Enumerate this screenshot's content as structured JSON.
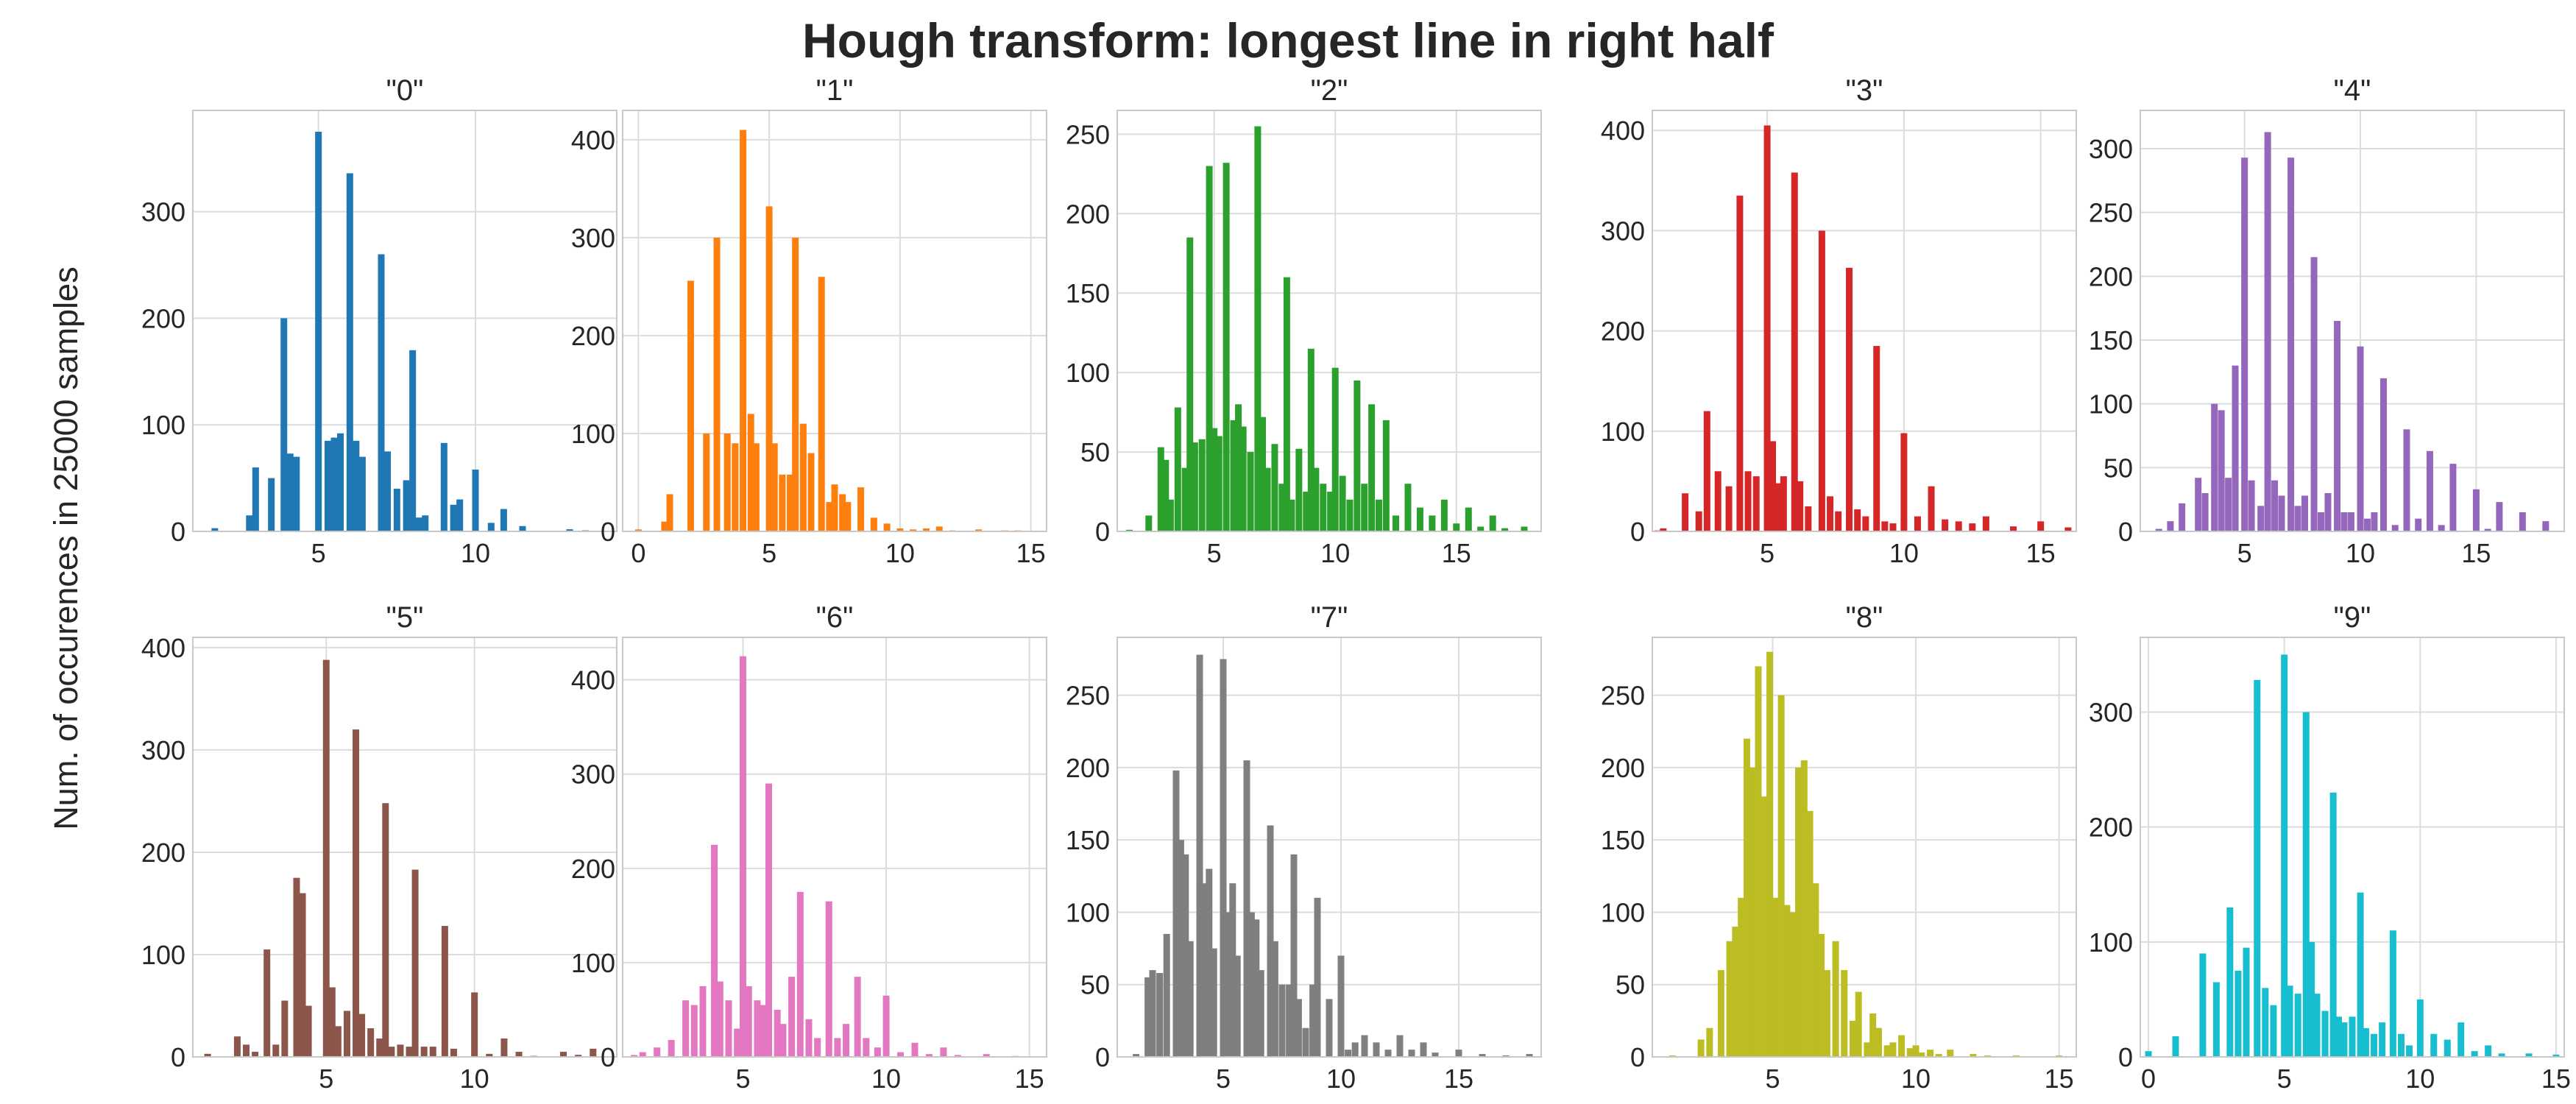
{
  "title": "Hough transform: longest line in right half",
  "ylabel": "Num. of occurences in 25000 samples",
  "chart_data": {
    "type": "bar",
    "layout": "2x5 grid of histograms",
    "grid": true,
    "panels": [
      {
        "title": "\"0\"",
        "color": "#1f77b4",
        "xlim": [
          1,
          14.5
        ],
        "ylim": [
          0,
          395
        ],
        "xticks": [
          5,
          10
        ],
        "yticks": [
          0,
          100,
          200,
          300
        ],
        "x": [
          1.7,
          2.8,
          3.0,
          3.5,
          3.9,
          4.1,
          4.3,
          5.0,
          5.3,
          5.5,
          5.7,
          6.0,
          6.2,
          6.4,
          7.0,
          7.2,
          7.5,
          7.8,
          8.0,
          8.2,
          8.4,
          9.0,
          9.3,
          9.5,
          10.0,
          10.5,
          10.9,
          11.5,
          13.0,
          13.5
        ],
        "values": [
          3,
          15,
          60,
          50,
          200,
          73,
          70,
          375,
          85,
          88,
          92,
          336,
          85,
          70,
          260,
          75,
          40,
          48,
          170,
          13,
          15,
          83,
          25,
          30,
          58,
          8,
          21,
          5,
          2,
          1
        ]
      },
      {
        "title": "\"1\"",
        "color": "#ff7f0e",
        "xlim": [
          -0.6,
          15.6
        ],
        "ylim": [
          0,
          430
        ],
        "xticks": [
          0,
          5,
          10,
          15
        ],
        "yticks": [
          0,
          100,
          200,
          300,
          400
        ],
        "x": [
          0.0,
          1.0,
          1.2,
          2.0,
          2.6,
          3.0,
          3.4,
          3.7,
          4.0,
          4.3,
          4.5,
          5.0,
          5.2,
          5.5,
          5.8,
          6.0,
          6.3,
          6.6,
          7.0,
          7.3,
          7.5,
          7.8,
          8.0,
          8.5,
          9.0,
          9.5,
          10.0,
          10.5,
          11.0,
          11.5,
          12.0,
          13.0,
          14.0,
          14.5
        ],
        "values": [
          2,
          10,
          38,
          256,
          100,
          300,
          100,
          90,
          410,
          120,
          90,
          332,
          90,
          58,
          58,
          300,
          110,
          80,
          260,
          30,
          48,
          38,
          30,
          45,
          14,
          8,
          3,
          2,
          3,
          5,
          1,
          2,
          1,
          1
        ]
      },
      {
        "title": "\"2\"",
        "color": "#2ca02c",
        "xlim": [
          1,
          18.5
        ],
        "ylim": [
          0,
          265
        ],
        "xticks": [
          5,
          10,
          15
        ],
        "yticks": [
          0,
          50,
          100,
          150,
          200,
          250
        ],
        "x": [
          1.5,
          2.3,
          2.8,
          3.0,
          3.2,
          3.5,
          3.8,
          4.0,
          4.2,
          4.5,
          4.8,
          5.0,
          5.2,
          5.5,
          5.8,
          6.0,
          6.2,
          6.5,
          6.8,
          7.0,
          7.2,
          7.5,
          7.8,
          8.0,
          8.2,
          8.5,
          8.8,
          9.0,
          9.2,
          9.5,
          9.8,
          10.0,
          10.3,
          10.6,
          10.9,
          11.2,
          11.5,
          11.8,
          12.1,
          12.5,
          13.0,
          13.5,
          14.0,
          14.5,
          15.0,
          15.5,
          16.0,
          16.5,
          17.0,
          17.8
        ],
        "values": [
          1,
          10,
          53,
          45,
          20,
          78,
          40,
          185,
          56,
          58,
          230,
          65,
          60,
          232,
          70,
          80,
          66,
          50,
          255,
          72,
          40,
          55,
          30,
          160,
          20,
          52,
          25,
          115,
          40,
          30,
          25,
          103,
          35,
          20,
          95,
          30,
          80,
          20,
          70,
          10,
          30,
          15,
          10,
          20,
          5,
          15,
          3,
          10,
          2,
          3
        ]
      },
      {
        "title": "\"3\"",
        "color": "#d62728",
        "xlim": [
          0.8,
          16.3
        ],
        "ylim": [
          0,
          420
        ],
        "xticks": [
          5,
          10,
          15
        ],
        "yticks": [
          0,
          100,
          200,
          300,
          400
        ],
        "x": [
          1.0,
          1.2,
          2.0,
          2.5,
          2.8,
          3.2,
          3.6,
          4.0,
          4.3,
          4.6,
          5.0,
          5.2,
          5.4,
          5.6,
          6.0,
          6.2,
          6.5,
          7.0,
          7.3,
          7.6,
          8.0,
          8.3,
          8.6,
          9.0,
          9.3,
          9.6,
          10.0,
          10.5,
          11.0,
          11.5,
          12.0,
          12.5,
          13.0,
          14.0,
          15.0,
          16.0
        ],
        "values": [
          1,
          3,
          38,
          20,
          120,
          60,
          45,
          335,
          60,
          55,
          405,
          90,
          48,
          55,
          358,
          50,
          25,
          300,
          35,
          20,
          263,
          22,
          15,
          185,
          10,
          8,
          98,
          15,
          45,
          12,
          10,
          8,
          15,
          5,
          10,
          4
        ]
      },
      {
        "title": "\"4\"",
        "color": "#9467bd",
        "xlim": [
          0.5,
          18.8
        ],
        "ylim": [
          0,
          330
        ],
        "xticks": [
          5,
          10,
          15
        ],
        "yticks": [
          0,
          50,
          100,
          150,
          200,
          250,
          300
        ],
        "x": [
          1.3,
          1.8,
          2.3,
          3.0,
          3.3,
          3.7,
          4.0,
          4.3,
          4.6,
          5.0,
          5.3,
          5.7,
          6.0,
          6.3,
          6.6,
          7.0,
          7.3,
          7.6,
          8.0,
          8.3,
          8.6,
          9.0,
          9.3,
          9.6,
          10.0,
          10.3,
          10.6,
          11.0,
          11.5,
          12.0,
          12.5,
          13.0,
          13.5,
          14.0,
          15.0,
          15.5,
          16.0,
          17.0,
          18.0
        ],
        "values": [
          2,
          8,
          22,
          42,
          30,
          100,
          95,
          42,
          130,
          293,
          40,
          20,
          313,
          40,
          28,
          293,
          20,
          28,
          215,
          15,
          30,
          165,
          15,
          15,
          145,
          10,
          15,
          120,
          5,
          80,
          10,
          63,
          5,
          53,
          33,
          2,
          23,
          15,
          8
        ]
      },
      {
        "title": "\"5\"",
        "color": "#8c564b",
        "xlim": [
          0.5,
          14.8
        ],
        "ylim": [
          0,
          410
        ],
        "xticks": [
          5,
          10
        ],
        "yticks": [
          0,
          100,
          200,
          300,
          400
        ],
        "x": [
          1.0,
          2.0,
          2.3,
          2.6,
          3.0,
          3.3,
          3.6,
          4.0,
          4.2,
          4.4,
          5.0,
          5.2,
          5.4,
          5.7,
          6.0,
          6.2,
          6.5,
          6.8,
          7.0,
          7.2,
          7.5,
          7.8,
          8.0,
          8.3,
          8.6,
          9.0,
          9.3,
          10.0,
          10.5,
          11.0,
          11.5,
          12.0,
          13.0,
          13.5,
          14.0
        ],
        "values": [
          3,
          20,
          12,
          5,
          105,
          12,
          55,
          175,
          160,
          50,
          388,
          68,
          30,
          45,
          320,
          42,
          28,
          18,
          248,
          10,
          12,
          10,
          183,
          10,
          10,
          128,
          8,
          63,
          3,
          18,
          5,
          1,
          5,
          2,
          8
        ]
      },
      {
        "title": "\"6\"",
        "color": "#e377c2",
        "xlim": [
          0.8,
          15.6
        ],
        "ylim": [
          0,
          445
        ],
        "xticks": [
          5,
          10,
          15
        ],
        "yticks": [
          0,
          100,
          200,
          300,
          400
        ],
        "x": [
          1.2,
          1.5,
          2.0,
          2.5,
          3.0,
          3.3,
          3.6,
          4.0,
          4.2,
          4.5,
          4.8,
          5.0,
          5.2,
          5.5,
          5.7,
          5.9,
          6.2,
          6.4,
          6.7,
          7.0,
          7.3,
          7.6,
          8.0,
          8.3,
          8.6,
          9.0,
          9.3,
          9.7,
          10.0,
          10.5,
          11.0,
          11.5,
          12.0,
          12.5,
          13.5,
          14.5
        ],
        "values": [
          2,
          5,
          10,
          18,
          60,
          55,
          75,
          225,
          80,
          60,
          30,
          425,
          75,
          60,
          55,
          290,
          50,
          35,
          85,
          175,
          40,
          20,
          165,
          20,
          35,
          85,
          20,
          10,
          65,
          5,
          15,
          3,
          10,
          2,
          3,
          1
        ]
      },
      {
        "title": "\"7\"",
        "color": "#7f7f7f",
        "xlim": [
          0.5,
          18.5
        ],
        "ylim": [
          0,
          290
        ],
        "xticks": [
          5,
          10,
          15
        ],
        "yticks": [
          0,
          50,
          100,
          150,
          200,
          250
        ],
        "x": [
          1.3,
          1.8,
          2.0,
          2.3,
          2.6,
          3.0,
          3.2,
          3.4,
          3.6,
          4.0,
          4.2,
          4.4,
          4.6,
          5.0,
          5.2,
          5.4,
          5.6,
          6.0,
          6.2,
          6.4,
          6.6,
          7.0,
          7.2,
          7.5,
          7.8,
          8.0,
          8.2,
          8.5,
          8.8,
          9.0,
          9.5,
          10.0,
          10.3,
          10.6,
          11.0,
          11.5,
          12.0,
          12.5,
          13.0,
          13.5,
          14.0,
          15.0,
          16.0,
          17.0,
          18.0
        ],
        "values": [
          2,
          55,
          60,
          58,
          85,
          198,
          150,
          140,
          80,
          278,
          120,
          130,
          75,
          275,
          100,
          120,
          70,
          205,
          100,
          95,
          60,
          160,
          80,
          50,
          50,
          140,
          40,
          20,
          50,
          110,
          40,
          70,
          5,
          10,
          15,
          10,
          5,
          15,
          5,
          10,
          3,
          5,
          2,
          1,
          2
        ]
      },
      {
        "title": "\"8\"",
        "color": "#bcbd22",
        "xlim": [
          0.8,
          15.6
        ],
        "ylim": [
          0,
          290
        ],
        "xticks": [
          5,
          10,
          15
        ],
        "yticks": [
          0,
          50,
          100,
          150,
          200,
          250
        ],
        "x": [
          1.5,
          2.5,
          2.8,
          3.2,
          3.5,
          3.7,
          3.9,
          4.1,
          4.3,
          4.5,
          4.7,
          4.9,
          5.1,
          5.3,
          5.5,
          5.7,
          5.9,
          6.1,
          6.3,
          6.5,
          6.7,
          6.9,
          7.2,
          7.5,
          7.8,
          8.0,
          8.3,
          8.5,
          8.7,
          9.0,
          9.2,
          9.5,
          9.8,
          10.0,
          10.2,
          10.5,
          10.8,
          11.2,
          12.0,
          12.5,
          13.5,
          15.0
        ],
        "values": [
          1,
          12,
          20,
          60,
          80,
          90,
          110,
          220,
          200,
          270,
          180,
          280,
          110,
          250,
          105,
          100,
          200,
          205,
          170,
          120,
          85,
          60,
          80,
          60,
          25,
          45,
          10,
          30,
          20,
          8,
          10,
          15,
          6,
          8,
          3,
          5,
          2,
          5,
          2,
          1,
          1,
          1
        ]
      },
      {
        "title": "\"9\"",
        "color": "#17becf",
        "xlim": [
          -0.3,
          15.3
        ],
        "ylim": [
          0,
          365
        ],
        "xticks": [
          0,
          5,
          10,
          15
        ],
        "yticks": [
          0,
          100,
          200,
          300
        ],
        "x": [
          0.0,
          1.0,
          2.0,
          2.5,
          3.0,
          3.3,
          3.6,
          4.0,
          4.3,
          4.6,
          5.0,
          5.2,
          5.5,
          5.8,
          6.0,
          6.2,
          6.5,
          6.8,
          7.0,
          7.2,
          7.5,
          7.8,
          8.0,
          8.3,
          8.6,
          9.0,
          9.3,
          9.6,
          10.0,
          10.5,
          11.0,
          11.5,
          12.0,
          12.5,
          13.0,
          14.0,
          15.0
        ],
        "values": [
          5,
          18,
          90,
          65,
          130,
          75,
          95,
          328,
          60,
          45,
          350,
          62,
          55,
          300,
          100,
          55,
          40,
          230,
          35,
          30,
          35,
          143,
          25,
          20,
          30,
          110,
          20,
          10,
          50,
          20,
          15,
          30,
          5,
          10,
          3,
          3,
          2
        ]
      }
    ]
  }
}
